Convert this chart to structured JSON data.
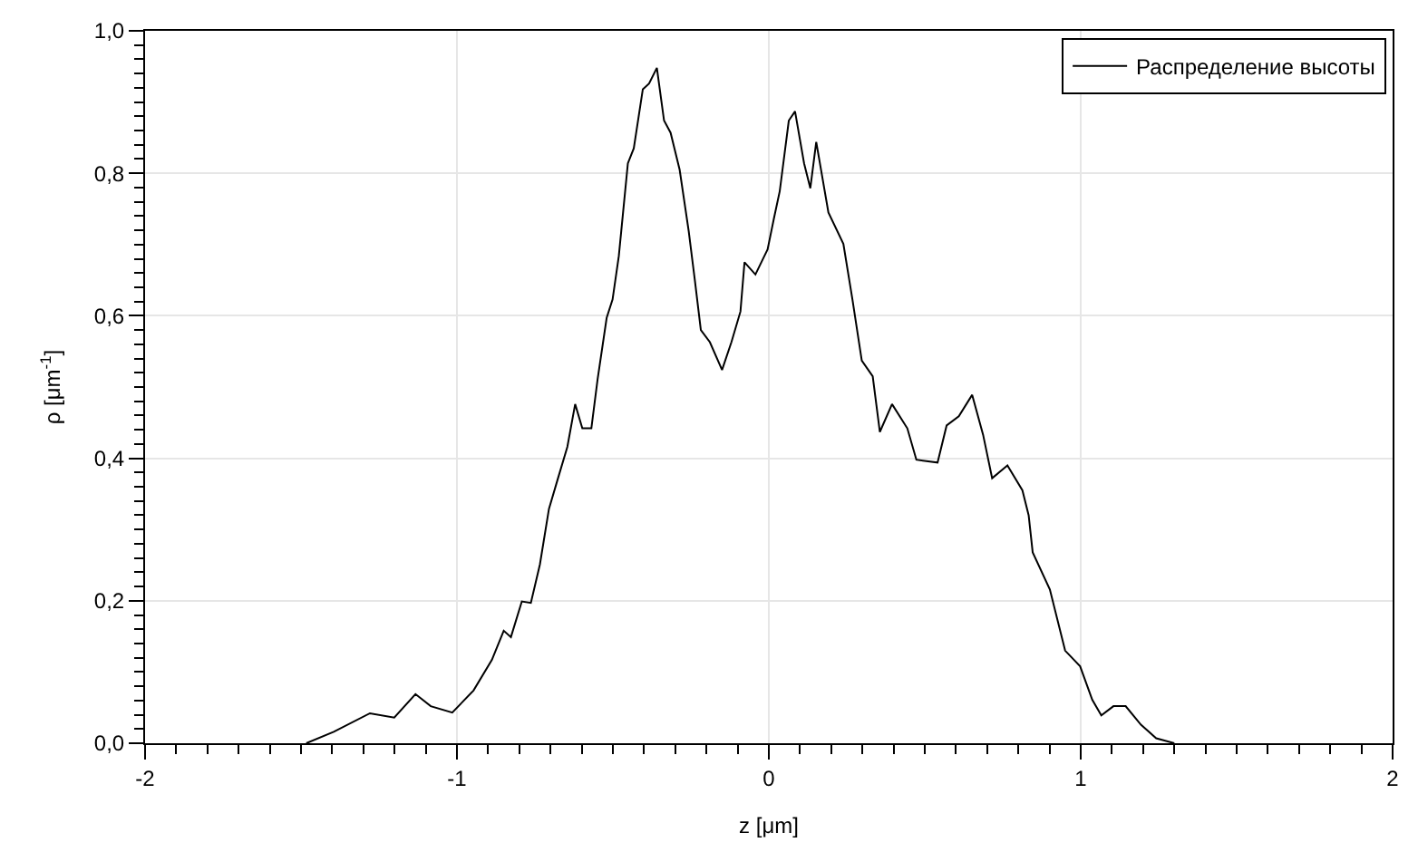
{
  "chart_data": {
    "type": "line",
    "xlabel": "z [μm]",
    "ylabel": "ρ [μm$^{-1}$]",
    "xlim": [
      -2,
      2
    ],
    "ylim": [
      0,
      1
    ],
    "xticks": [
      -2,
      -1,
      0,
      1,
      2
    ],
    "yticks": [
      {
        "value": 0,
        "label": "0,0"
      },
      {
        "value": 0.2,
        "label": "0,2"
      },
      {
        "value": 0.4,
        "label": "0,4"
      },
      {
        "value": 0.6,
        "label": "0,6"
      },
      {
        "value": 0.8,
        "label": "0,8"
      },
      {
        "value": 1,
        "label": "1,0"
      }
    ],
    "grid": true,
    "legend": "top right",
    "marker": "none",
    "line_style": "solid",
    "series": [
      {
        "name": "Распределение высоты",
        "color": "#000000",
        "x": [
          -1.483,
          -1.395,
          -1.279,
          -1.201,
          -1.133,
          -1.084,
          -1.015,
          -0.947,
          -0.888,
          -0.85,
          -0.827,
          -0.792,
          -0.763,
          -0.734,
          -0.705,
          -0.676,
          -0.646,
          -0.621,
          -0.598,
          -0.569,
          -0.549,
          -0.52,
          -0.501,
          -0.481,
          -0.452,
          -0.433,
          -0.404,
          -0.384,
          -0.359,
          -0.336,
          -0.315,
          -0.286,
          -0.257,
          -0.237,
          -0.218,
          -0.189,
          -0.15,
          -0.12,
          -0.091,
          -0.078,
          -0.043,
          -0.004,
          0.016,
          0.035,
          0.064,
          0.084,
          0.113,
          0.133,
          0.152,
          0.191,
          0.239,
          0.268,
          0.298,
          0.333,
          0.356,
          0.395,
          0.444,
          0.473,
          0.541,
          0.57,
          0.609,
          0.652,
          0.687,
          0.716,
          0.765,
          0.813,
          0.833,
          0.846,
          0.901,
          0.95,
          0.998,
          1.037,
          1.066,
          1.105,
          1.144,
          1.193,
          1.242,
          1.3
        ],
        "values": [
          0.0,
          0.016,
          0.042,
          0.036,
          0.069,
          0.052,
          0.043,
          0.074,
          0.117,
          0.158,
          0.149,
          0.199,
          0.197,
          0.251,
          0.329,
          0.372,
          0.416,
          0.476,
          0.442,
          0.442,
          0.511,
          0.597,
          0.623,
          0.684,
          0.814,
          0.835,
          0.918,
          0.926,
          0.948,
          0.874,
          0.857,
          0.805,
          0.719,
          0.649,
          0.58,
          0.563,
          0.524,
          0.563,
          0.606,
          0.675,
          0.658,
          0.693,
          0.736,
          0.775,
          0.874,
          0.887,
          0.814,
          0.779,
          0.844,
          0.745,
          0.701,
          0.623,
          0.537,
          0.515,
          0.437,
          0.476,
          0.442,
          0.398,
          0.394,
          0.446,
          0.459,
          0.489,
          0.433,
          0.372,
          0.39,
          0.355,
          0.32,
          0.268,
          0.216,
          0.13,
          0.108,
          0.061,
          0.039,
          0.052,
          0.052,
          0.026,
          0.007,
          0.0
        ]
      }
    ]
  }
}
